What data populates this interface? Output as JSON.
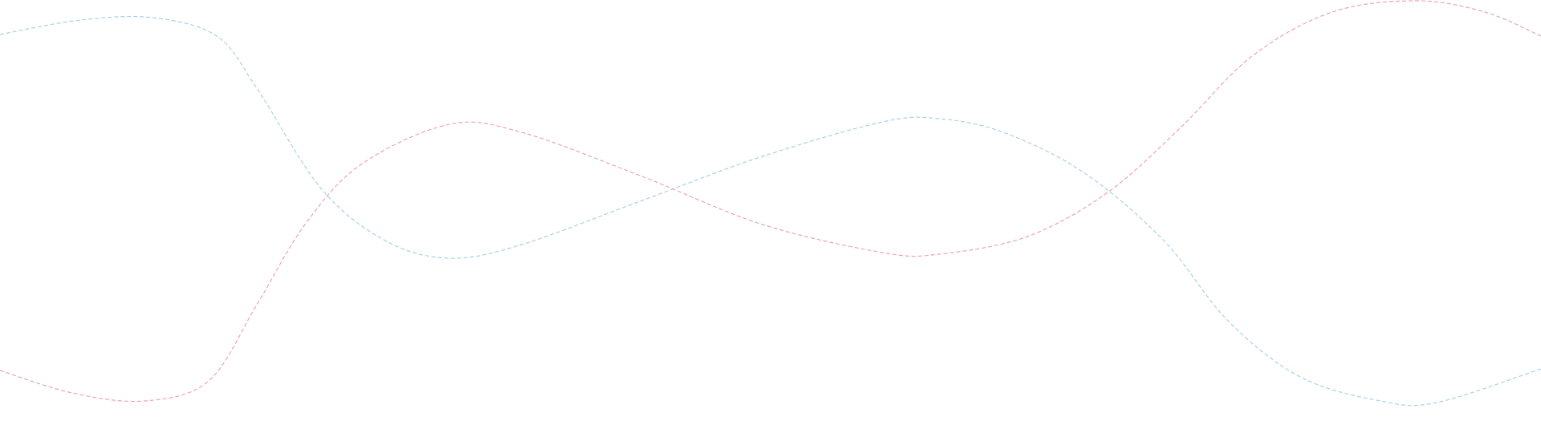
{
  "decoration": {
    "curves": [
      {
        "name": "blue-wave",
        "color": "#a9d1e6"
      },
      {
        "name": "pink-wave",
        "color": "#e9a3bd"
      }
    ]
  }
}
